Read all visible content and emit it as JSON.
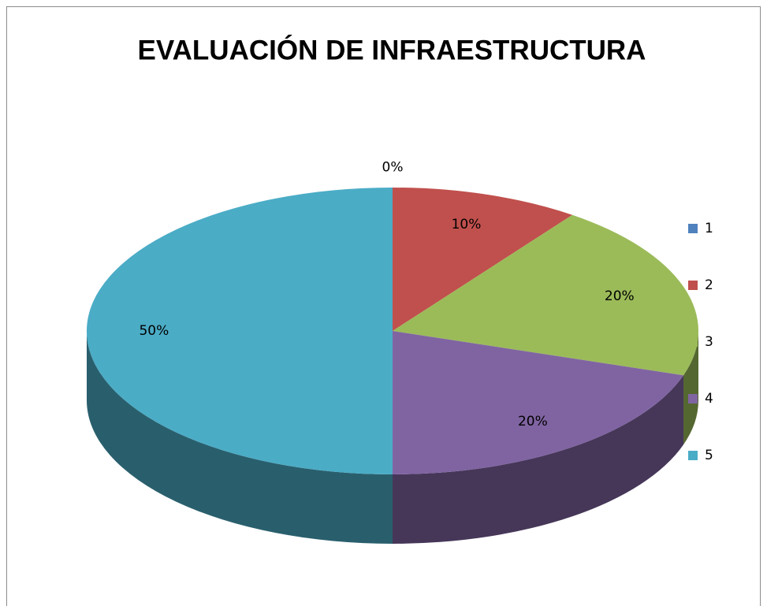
{
  "chart_data": {
    "type": "pie",
    "title": "EVALUACIÓN DE INFRAESTRUCTURA",
    "categories": [
      "1",
      "2",
      "3",
      "4",
      "5"
    ],
    "values": [
      0,
      10,
      20,
      20,
      50
    ],
    "value_labels": [
      "0%",
      "10%",
      "20%",
      "20%",
      "50%"
    ],
    "colors": [
      "#4f81bd",
      "#c0504d",
      "#9bbb59",
      "#8064a2",
      "#4bacc6"
    ],
    "legend": "right"
  }
}
